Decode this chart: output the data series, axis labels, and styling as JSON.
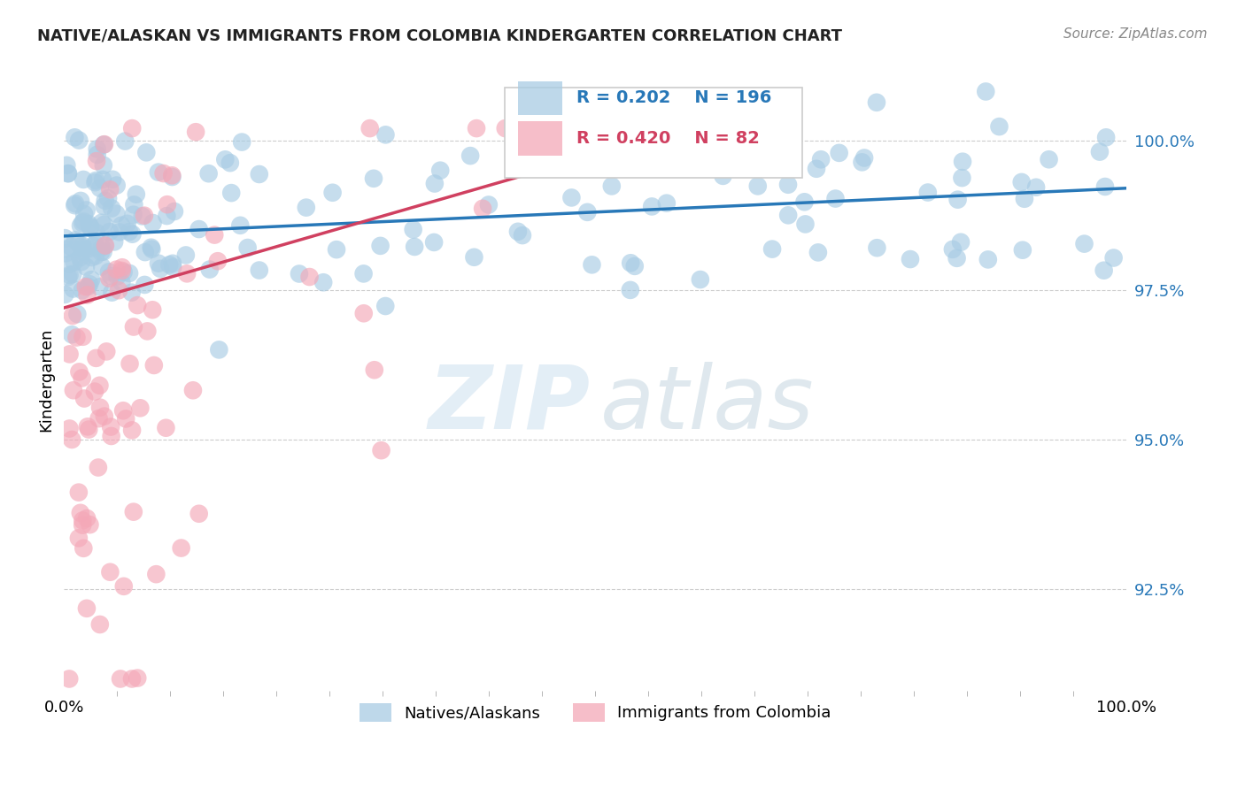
{
  "title": "NATIVE/ALASKAN VS IMMIGRANTS FROM COLOMBIA KINDERGARTEN CORRELATION CHART",
  "source_text": "Source: ZipAtlas.com",
  "ylabel": "Kindergarten",
  "legend_label_blue": "Natives/Alaskans",
  "legend_label_pink": "Immigrants from Colombia",
  "R_blue": 0.202,
  "N_blue": 196,
  "R_pink": 0.42,
  "N_pink": 82,
  "blue_color": "#a8cce4",
  "blue_line_color": "#2878b8",
  "pink_color": "#f4a8b8",
  "pink_line_color": "#d04060",
  "right_ytick_labels": [
    "92.5%",
    "95.0%",
    "97.5%",
    "100.0%"
  ],
  "right_ytick_values": [
    0.925,
    0.95,
    0.975,
    1.0
  ],
  "xmin": 0.0,
  "xmax": 1.0,
  "ymin": 0.908,
  "ymax": 1.012
}
